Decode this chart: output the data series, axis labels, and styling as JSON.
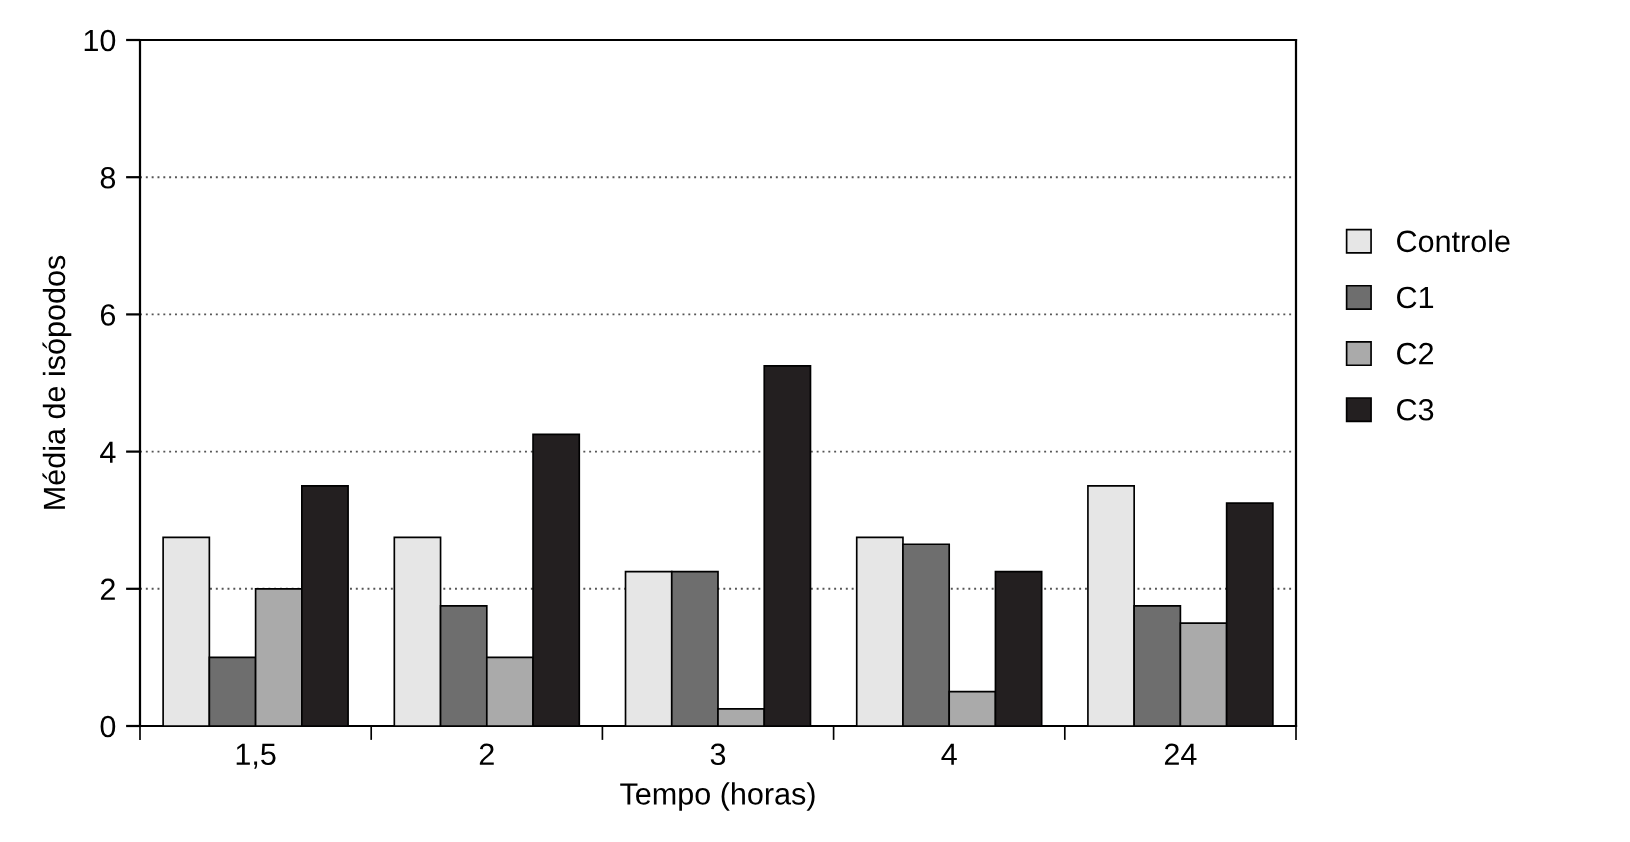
{
  "chart_data": {
    "type": "bar",
    "xlabel": "Tempo (horas)",
    "ylabel": "Média de isópodos",
    "categories": [
      "1,5",
      "2",
      "3",
      "4",
      "24"
    ],
    "series": [
      {
        "name": "Controle",
        "color": "#e6e6e6",
        "values": [
          2.75,
          2.75,
          2.25,
          2.75,
          3.5
        ]
      },
      {
        "name": "C1",
        "color": "#6e6e6e",
        "values": [
          1.0,
          1.75,
          2.25,
          2.65,
          1.75
        ]
      },
      {
        "name": "C2",
        "color": "#aaaaaa",
        "values": [
          2.0,
          1.0,
          0.25,
          0.5,
          1.5
        ]
      },
      {
        "name": "C3",
        "color": "#231f20",
        "values": [
          3.5,
          4.25,
          5.25,
          2.25,
          3.25
        ]
      }
    ],
    "ylim": [
      0,
      10
    ],
    "yticks": [
      0,
      2,
      4,
      6,
      8,
      10
    ],
    "grid": "y",
    "legend": "right"
  }
}
